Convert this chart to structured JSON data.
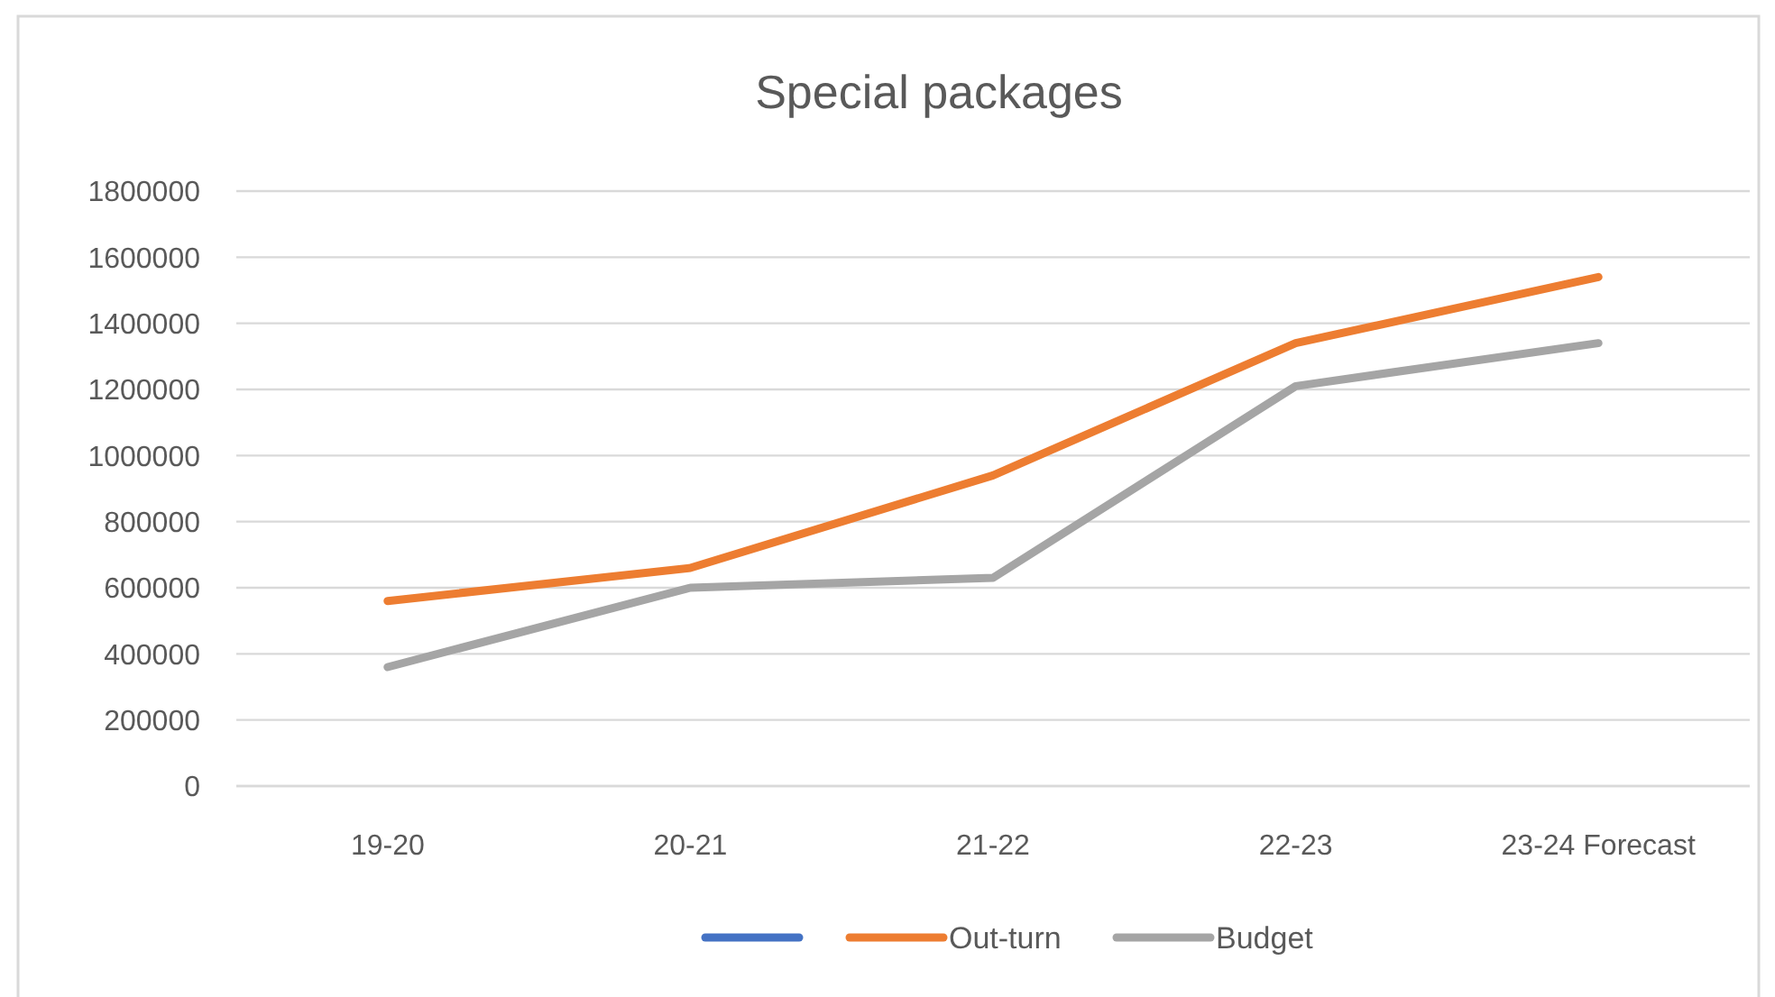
{
  "chart_data": {
    "type": "line",
    "title": "Special packages",
    "categories": [
      "19-20",
      "20-21",
      "21-22",
      "22-23",
      "23-24 Forecast"
    ],
    "series": [
      {
        "color": "#4472c4",
        "values": [
          null,
          null,
          null,
          null,
          null
        ]
      },
      {
        "name": "Out-turn",
        "color": "#ed7d31",
        "values": [
          560000,
          660000,
          940000,
          1340000,
          1540000
        ]
      },
      {
        "name": "Budget",
        "color": "#a5a5a5",
        "values": [
          360000,
          600000,
          630000,
          1210000,
          1340000
        ]
      }
    ],
    "ylim": [
      0,
      1800000
    ],
    "yticks": [
      0,
      200000,
      400000,
      600000,
      800000,
      1000000,
      1200000,
      1400000,
      1600000,
      1800000
    ],
    "grid": "y",
    "legend": "bottom",
    "marker": "none",
    "line_style": "solid"
  }
}
